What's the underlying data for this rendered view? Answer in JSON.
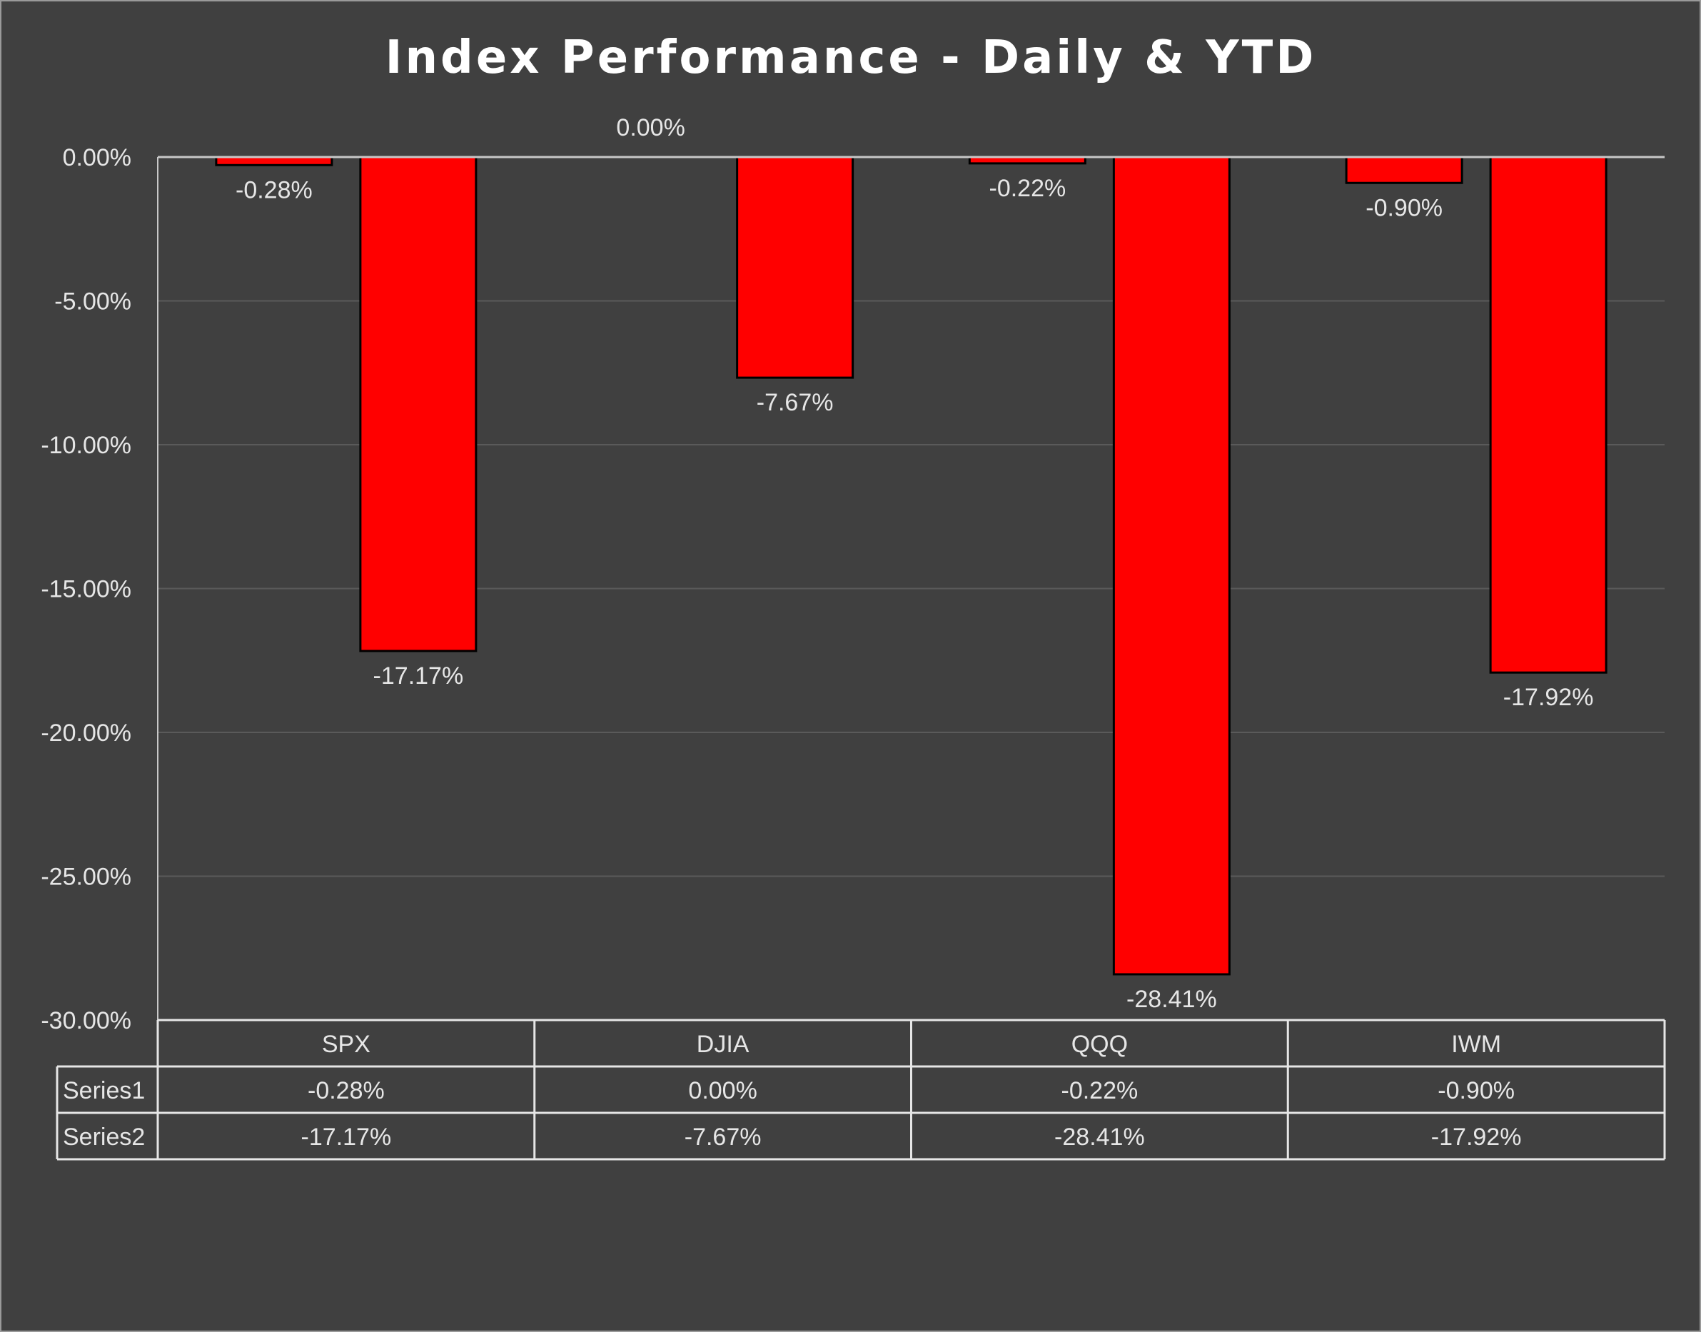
{
  "chart_data": {
    "type": "bar",
    "title": "Index Performance - Daily & YTD",
    "categories": [
      "SPX",
      "DJIA",
      "QQQ",
      "IWM"
    ],
    "series": [
      {
        "name": "Series1",
        "values": [
          -0.28,
          0.0,
          -0.22,
          -0.9
        ],
        "labels": [
          "-0.28%",
          "0.00%",
          "-0.22%",
          "-0.90%"
        ]
      },
      {
        "name": "Series2",
        "values": [
          -17.17,
          -7.67,
          -28.41,
          -17.92
        ],
        "labels": [
          "-17.17%",
          "-7.67%",
          "-28.41%",
          "-17.92%"
        ]
      }
    ],
    "ylim": [
      -30,
      0
    ],
    "y_ticks": [
      0,
      -5,
      -10,
      -15,
      -20,
      -25,
      -30
    ],
    "y_tick_labels": [
      "0.00%",
      "-5.00%",
      "-10.00%",
      "-15.00%",
      "-20.00%",
      "-25.00%",
      "-30.00%"
    ],
    "grid": true,
    "data_table": true,
    "colors": {
      "background": "#404040",
      "bar": "#ff0000",
      "bar_edge": "#000000",
      "text": "#e6e6e6",
      "title": "#ffffff",
      "grid": "#5a5a5a",
      "axis": "#c8c8c8"
    }
  }
}
